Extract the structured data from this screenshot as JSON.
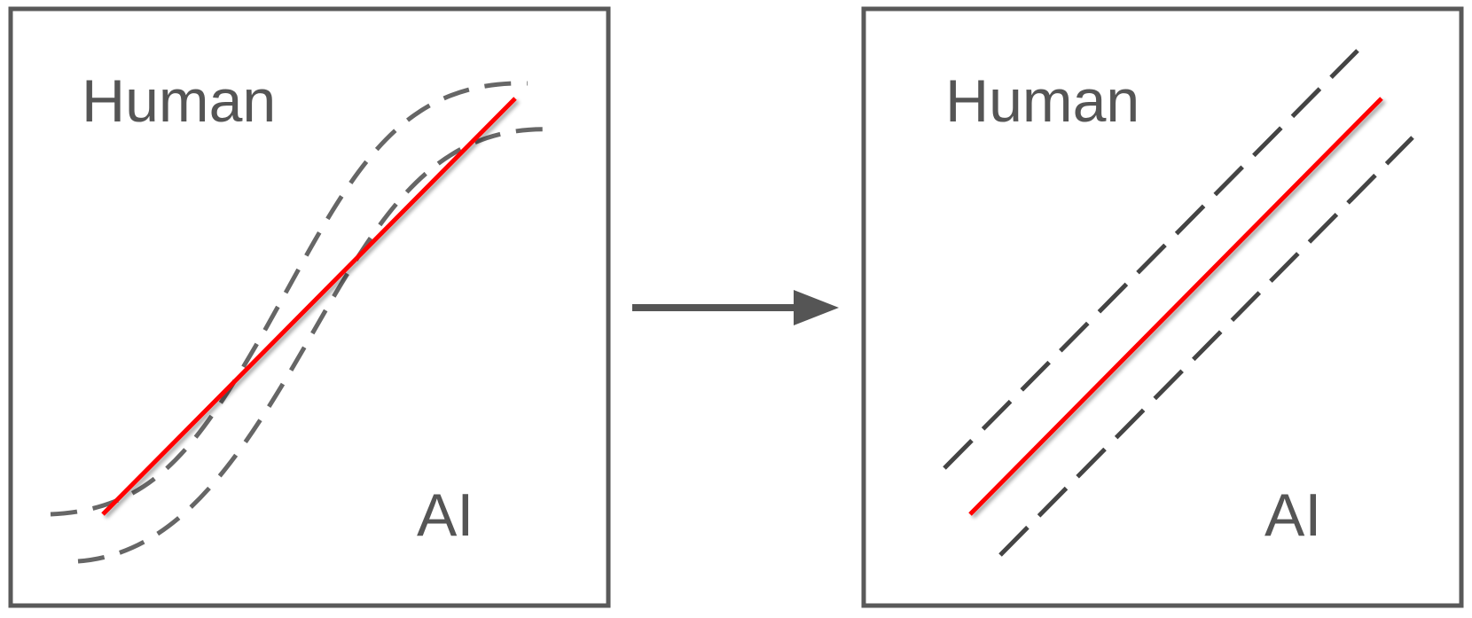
{
  "left_panel": {
    "y_label": "Human",
    "x_label": "AI"
  },
  "right_panel": {
    "y_label": "Human",
    "x_label": "AI"
  },
  "colors": {
    "frame": "#595959",
    "dashed": "#595959",
    "trend": "#ff0000",
    "arrow": "#555555",
    "text": "#555555"
  }
}
